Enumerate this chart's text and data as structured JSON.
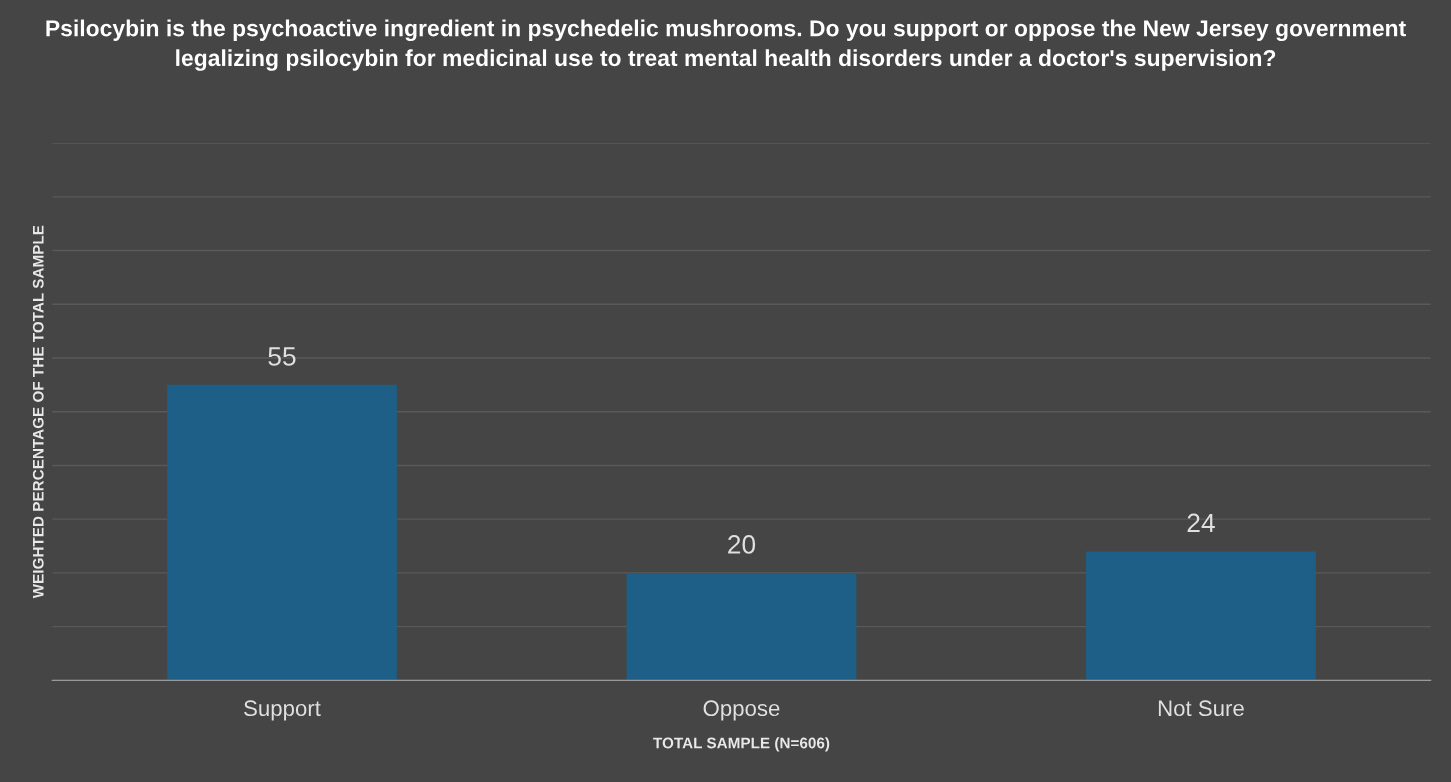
{
  "chart_data": {
    "type": "bar",
    "title": "Psilocybin is the psychoactive ingredient in psychedelic mushrooms. Do you support or oppose the New Jersey government legalizing psilocybin for medicinal use to treat mental health disorders under a doctor's supervision?",
    "xlabel": "TOTAL SAMPLE (N=606)",
    "ylabel": "WEIGHTED PERCENTAGE OF THE TOTAL SAMPLE",
    "categories": [
      "Support",
      "Oppose",
      "Not Sure"
    ],
    "values": [
      55,
      20,
      24
    ],
    "color": "#1d5f87",
    "ylim": [
      0,
      100
    ],
    "yticks": [
      {
        "value": 0,
        "label": null
      },
      {
        "value": 10,
        "label": null
      },
      {
        "value": 20,
        "label": null
      },
      {
        "value": 30,
        "label": null
      },
      {
        "value": 40,
        "label": null
      },
      {
        "value": 50,
        "label": null
      },
      {
        "value": 60,
        "label": null
      },
      {
        "value": 70,
        "label": null
      },
      {
        "value": 80,
        "label": null
      },
      {
        "value": 90,
        "label": null
      },
      {
        "value": 100,
        "label": null
      }
    ],
    "tick_labels": "x",
    "grid": "y",
    "data_labels": true,
    "legend": false
  }
}
